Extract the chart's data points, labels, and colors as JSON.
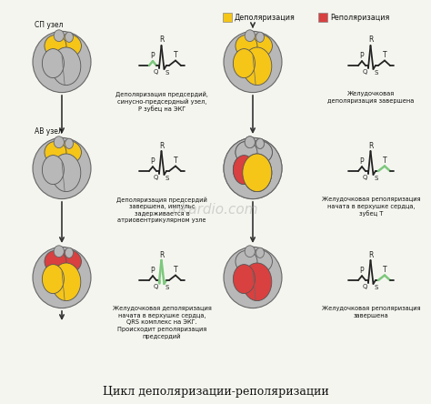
{
  "title": "Цикл деполяризации-реполяризации",
  "background_color": "#f5f5f0",
  "legend_depol_color": "#F5C518",
  "legend_repol_color": "#D94040",
  "legend_depol_text": "Деполяризация",
  "legend_repol_text": "Реполяризация",
  "watermark": "okardio.com",
  "label_sp": "СП узел",
  "label_av": "АВ узел",
  "cap1": "Деполяризация предсердий,\nсинусно-предсердный узел,\nР зубец на ЭКГ",
  "cap2": "Деполяризация предсердий\nзавершена, импульс\nзадерживается в\nатриовентрикулярном узле",
  "cap3": "Желудочковая деполяризация\nначата в верхушке сердца,\nQRS комплекс на ЭКГ.\nПроисходит реполяризация\nпредсердий",
  "rcap1": "Желудочковая\nдеполяризация завершена",
  "rcap2": "Желудочковая реполяризация\nначата в верхушке сердца,\nзубец Т",
  "rcap3": "Желудочковая реполяризация\nзавершена"
}
